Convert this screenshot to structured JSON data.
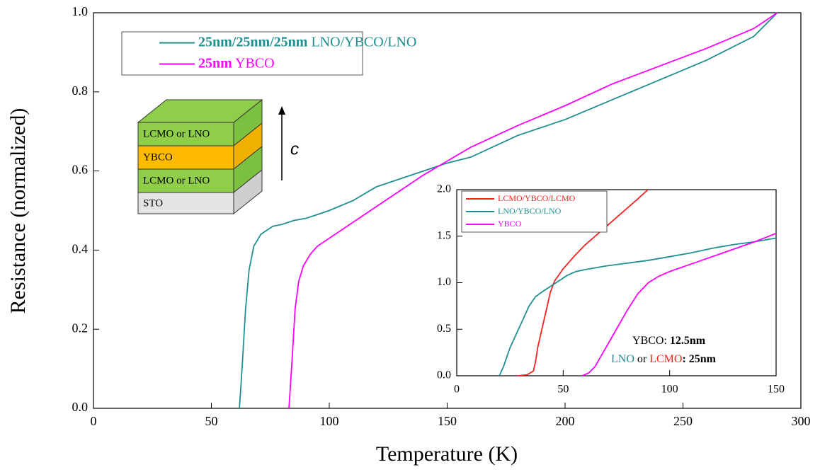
{
  "chart_data": [
    {
      "type": "line",
      "x_label": "Temperature (K)",
      "y_label": "Resistance (normalized)",
      "xlim": [
        0,
        300
      ],
      "xticks": [
        0,
        50,
        100,
        150,
        200,
        250,
        300
      ],
      "ylim": [
        0,
        1
      ],
      "yticks": [
        {
          "value": 0,
          "label": "0.0"
        },
        0.2,
        0.4,
        0.6,
        0.8,
        {
          "value": 1,
          "label": "1.0"
        }
      ],
      "legend": "top left",
      "series": [
        {
          "name": "25nm/25nm/25nm LNO/YBCO/LNO",
          "color": "#1f8f8f",
          "x": [
            61.9,
            63,
            64.5,
            66,
            68,
            71,
            76,
            80,
            85,
            90,
            95,
            100,
            110,
            120,
            130,
            140,
            150,
            160,
            180,
            200,
            220,
            240,
            260,
            280,
            290
          ],
          "values": [
            0,
            0.1,
            0.25,
            0.35,
            0.41,
            0.44,
            0.46,
            0.465,
            0.475,
            0.48,
            0.49,
            0.5,
            0.525,
            0.56,
            0.58,
            0.6,
            0.62,
            0.635,
            0.69,
            0.73,
            0.78,
            0.83,
            0.88,
            0.94,
            1.0
          ]
        },
        {
          "name": "25nm YBCO",
          "color": "#ff00ff",
          "x": [
            82.9,
            84,
            85.5,
            87,
            89,
            92,
            95,
            100,
            110,
            120,
            130,
            140,
            150,
            160,
            180,
            200,
            220,
            240,
            260,
            280,
            290
          ],
          "values": [
            0,
            0.1,
            0.25,
            0.32,
            0.36,
            0.39,
            0.41,
            0.43,
            0.47,
            0.51,
            0.55,
            0.59,
            0.625,
            0.66,
            0.715,
            0.765,
            0.82,
            0.865,
            0.91,
            0.96,
            1.0
          ]
        }
      ]
    },
    {
      "type": "line",
      "xlim": [
        0,
        150
      ],
      "xticks": [
        0,
        50,
        100,
        150
      ],
      "ylim": [
        0,
        2
      ],
      "yticks": [
        {
          "value": 0,
          "label": "0.0"
        },
        0.5,
        {
          "value": 1,
          "label": "1.0"
        },
        1.5,
        {
          "value": 2,
          "label": "2.0"
        }
      ],
      "legend": "top left",
      "series": [
        {
          "name": "LCMO/YBCO/LCMO",
          "color": "#ff2020",
          "x": [
            29,
            33,
            36,
            37,
            38,
            40,
            42,
            44,
            46,
            50,
            55,
            60,
            65,
            70,
            75,
            80,
            85,
            89.8
          ],
          "values": [
            0,
            0.01,
            0.05,
            0.15,
            0.3,
            0.5,
            0.7,
            0.9,
            1.02,
            1.15,
            1.28,
            1.4,
            1.5,
            1.6,
            1.7,
            1.8,
            1.9,
            2.0
          ]
        },
        {
          "name": "LNO/YBCO/LNO",
          "color": "#1f8f8f",
          "x": [
            20,
            22,
            25,
            28,
            31,
            34,
            37,
            40,
            44,
            48,
            52,
            56,
            60,
            70,
            80,
            90,
            100,
            110,
            120,
            130,
            140,
            150
          ],
          "values": [
            0,
            0.1,
            0.3,
            0.45,
            0.6,
            0.75,
            0.85,
            0.9,
            0.96,
            1.02,
            1.08,
            1.12,
            1.14,
            1.18,
            1.21,
            1.24,
            1.28,
            1.32,
            1.37,
            1.41,
            1.44,
            1.48
          ]
        },
        {
          "name": "YBCO",
          "color": "#ff00ff",
          "x": [
            58.9,
            62,
            65,
            70,
            75,
            80,
            85,
            90,
            95,
            100,
            110,
            120,
            130,
            140,
            150
          ],
          "values": [
            0,
            0.03,
            0.1,
            0.3,
            0.5,
            0.7,
            0.88,
            1.0,
            1.07,
            1.12,
            1.2,
            1.28,
            1.36,
            1.44,
            1.53
          ]
        }
      ],
      "annotations": [
        [
          "YBCO: ",
          "12.5nm"
        ],
        [
          "LNO",
          " or ",
          "LCMO",
          ": 25nm"
        ]
      ]
    }
  ],
  "diagram": {
    "layers": [
      "LCMO or LNO",
      "YBCO",
      "LCMO or LNO",
      "STO"
    ],
    "axis_label": "c"
  }
}
